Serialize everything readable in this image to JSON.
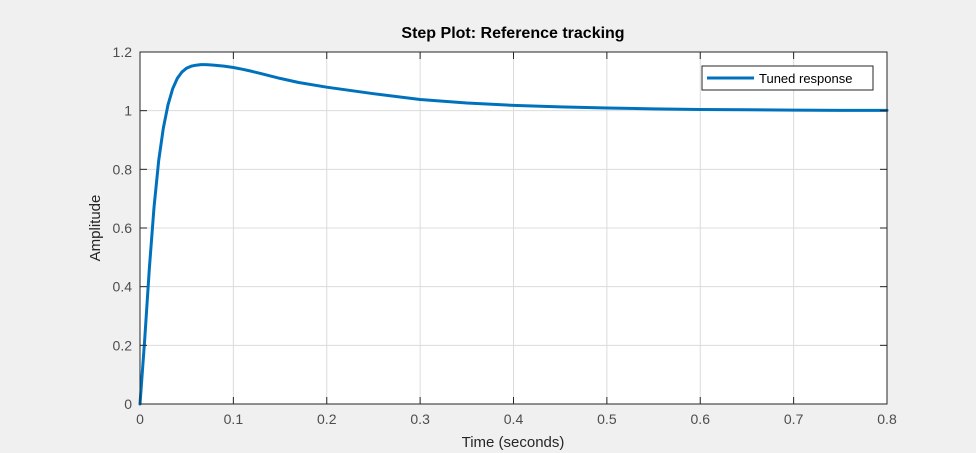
{
  "chart_data": {
    "type": "line",
    "title": "Step Plot: Reference tracking",
    "xlabel": "Time (seconds)",
    "ylabel": "Amplitude",
    "xlim": [
      0,
      0.8
    ],
    "ylim": [
      0,
      1.2
    ],
    "xticks": [
      0,
      0.1,
      0.2,
      0.3,
      0.4,
      0.5,
      0.6,
      0.7,
      0.8
    ],
    "xtick_labels": [
      "0",
      "0.1",
      "0.2",
      "0.3",
      "0.4",
      "0.5",
      "0.6",
      "0.7",
      "0.8"
    ],
    "yticks": [
      0,
      0.2,
      0.4,
      0.6,
      0.8,
      1,
      1.2
    ],
    "ytick_labels": [
      "0",
      "0.2",
      "0.4",
      "0.6",
      "0.8",
      "1",
      "1.2"
    ],
    "grid": true,
    "legend_position": "top-right",
    "colors": {
      "background": "#f0f0f0",
      "axes": "#ffffff",
      "grid": "#dcdcdc",
      "axis_line": "#262626",
      "tick_text": "#4d4d4d",
      "line": "#0072bd"
    },
    "series": [
      {
        "name": "Tuned response",
        "x": [
          0,
          0.005,
          0.01,
          0.015,
          0.02,
          0.025,
          0.03,
          0.035,
          0.04,
          0.045,
          0.05,
          0.055,
          0.06,
          0.065,
          0.07,
          0.075,
          0.08,
          0.09,
          0.1,
          0.11,
          0.12,
          0.13,
          0.14,
          0.15,
          0.17,
          0.2,
          0.25,
          0.3,
          0.35,
          0.4,
          0.45,
          0.5,
          0.55,
          0.6,
          0.65,
          0.7,
          0.75,
          0.8
        ],
        "y": [
          0,
          0.22,
          0.46,
          0.67,
          0.83,
          0.94,
          1.02,
          1.075,
          1.11,
          1.132,
          1.145,
          1.152,
          1.155,
          1.157,
          1.157,
          1.156,
          1.155,
          1.152,
          1.147,
          1.141,
          1.134,
          1.126,
          1.118,
          1.11,
          1.096,
          1.08,
          1.058,
          1.038,
          1.026,
          1.018,
          1.013,
          1.009,
          1.006,
          1.004,
          1.003,
          1.002,
          1.001,
          1.001
        ]
      }
    ]
  }
}
